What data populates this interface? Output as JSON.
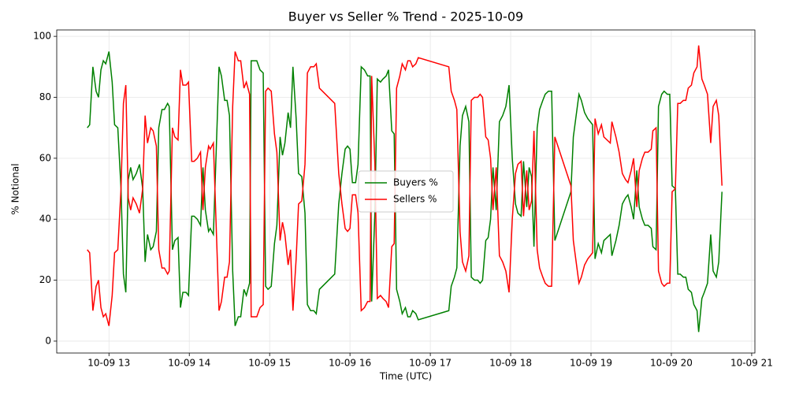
{
  "chart_data": {
    "type": "line",
    "title": "Buyer vs Seller % Trend - 2025-10-09",
    "x_label": "Time (UTC)",
    "y_label": "% Notional",
    "x": [
      12.73,
      12.76,
      12.8,
      12.84,
      12.87,
      12.9,
      12.93,
      12.96,
      13.0,
      13.04,
      13.07,
      13.11,
      13.15,
      13.18,
      13.21,
      13.24,
      13.27,
      13.3,
      13.34,
      13.38,
      13.42,
      13.45,
      13.48,
      13.52,
      13.55,
      13.59,
      13.62,
      13.66,
      13.69,
      13.73,
      13.75,
      13.79,
      13.82,
      13.86,
      13.89,
      13.92,
      13.96,
      13.99,
      14.03,
      14.06,
      14.1,
      14.14,
      14.17,
      14.2,
      14.24,
      14.26,
      14.3,
      14.37,
      14.4,
      14.44,
      14.47,
      14.5,
      14.54,
      14.57,
      14.61,
      14.64,
      14.68,
      14.71,
      14.75,
      14.77,
      14.81,
      14.84,
      14.88,
      14.92,
      14.95,
      14.98,
      15.02,
      15.06,
      15.09,
      15.13,
      15.16,
      15.19,
      15.23,
      15.26,
      15.29,
      15.33,
      15.36,
      15.4,
      15.44,
      15.47,
      15.51,
      15.55,
      15.58,
      15.62,
      15.81,
      15.86,
      15.9,
      15.94,
      15.97,
      16.0,
      16.03,
      16.07,
      16.1,
      16.14,
      16.18,
      16.22,
      16.25,
      16.27,
      16.31,
      16.34,
      16.38,
      16.41,
      16.45,
      16.48,
      16.52,
      16.55,
      16.58,
      16.62,
      16.65,
      16.69,
      16.72,
      16.75,
      16.78,
      16.82,
      16.85,
      17.23,
      17.26,
      17.3,
      17.33,
      17.37,
      17.4,
      17.44,
      17.48,
      17.51,
      17.55,
      17.59,
      17.62,
      17.65,
      17.69,
      17.72,
      17.75,
      17.78,
      17.82,
      17.86,
      17.9,
      17.94,
      17.98,
      18.02,
      18.06,
      18.09,
      18.13,
      18.16,
      18.2,
      18.23,
      18.26,
      18.29,
      18.33,
      18.36,
      18.4,
      18.43,
      18.47,
      18.51,
      18.55,
      18.75,
      18.78,
      18.81,
      18.85,
      18.88,
      18.92,
      18.96,
      19.02,
      19.05,
      19.09,
      19.13,
      19.16,
      19.2,
      19.24,
      19.26,
      19.31,
      19.35,
      19.39,
      19.43,
      19.46,
      19.5,
      19.53,
      19.57,
      19.6,
      19.64,
      19.67,
      19.71,
      19.75,
      19.77,
      19.81,
      19.84,
      19.88,
      19.91,
      19.95,
      19.98,
      20.01,
      20.05,
      20.08,
      20.11,
      20.15,
      20.18,
      20.21,
      20.25,
      20.28,
      20.32,
      20.34,
      20.38,
      20.41,
      20.45,
      20.49,
      20.52,
      20.56,
      20.59,
      20.63
    ],
    "series": [
      {
        "name": "Buyers %",
        "color": "#008000",
        "values": [
          70,
          71,
          90,
          82,
          80,
          89,
          92,
          91,
          95,
          85,
          71,
          70,
          50,
          22,
          16,
          53,
          57,
          53,
          55,
          58,
          50,
          26,
          35,
          30,
          31,
          36,
          70,
          76,
          76,
          78,
          77,
          30,
          33,
          34,
          11,
          16,
          16,
          15,
          41,
          41,
          40,
          38,
          57,
          43,
          36,
          37,
          35,
          90,
          87,
          79,
          79,
          74,
          23,
          5,
          8,
          8,
          17,
          15,
          19,
          92,
          92,
          92,
          89,
          88,
          18,
          17,
          18,
          32,
          38,
          67,
          61,
          65,
          75,
          70,
          90,
          73,
          55,
          54,
          42,
          12,
          10,
          10,
          9,
          17,
          22,
          45,
          55,
          63,
          64,
          63,
          52,
          52,
          58,
          90,
          89,
          87,
          87,
          13,
          42,
          86,
          85,
          86,
          87,
          89,
          69,
          68,
          17,
          13,
          9,
          11,
          8,
          8,
          10,
          9,
          7,
          10,
          18,
          21,
          24,
          64,
          74,
          77,
          72,
          21,
          20,
          20,
          19,
          20,
          33,
          34,
          40,
          57,
          43,
          72,
          74,
          77,
          84,
          60,
          45,
          42,
          41,
          59,
          44,
          57,
          54,
          31,
          70,
          76,
          79,
          81,
          82,
          82,
          33,
          49,
          67,
          73,
          81,
          79,
          75,
          73,
          71,
          27,
          32,
          29,
          33,
          34,
          35,
          28,
          33,
          38,
          45,
          47,
          48,
          44,
          40,
          56,
          44,
          40,
          38,
          38,
          37,
          31,
          30,
          77,
          81,
          82,
          81,
          81,
          51,
          50,
          22,
          22,
          21,
          21,
          17,
          16,
          12,
          10,
          3,
          14,
          16,
          19,
          35,
          23,
          21,
          26,
          49
        ]
      },
      {
        "name": "Sellers %",
        "color": "#ff0000",
        "values": [
          30,
          29,
          10,
          18,
          20,
          11,
          8,
          9,
          5,
          15,
          29,
          30,
          50,
          78,
          84,
          47,
          43,
          47,
          45,
          42,
          50,
          74,
          65,
          70,
          69,
          64,
          30,
          24,
          24,
          22,
          23,
          70,
          67,
          66,
          89,
          84,
          84,
          85,
          59,
          59,
          60,
          62,
          43,
          57,
          64,
          63,
          65,
          10,
          13,
          21,
          21,
          26,
          77,
          95,
          92,
          92,
          83,
          85,
          81,
          8,
          8,
          8,
          11,
          12,
          82,
          83,
          82,
          68,
          62,
          33,
          39,
          35,
          25,
          30,
          10,
          27,
          45,
          46,
          58,
          88,
          90,
          90,
          91,
          83,
          78,
          55,
          45,
          37,
          36,
          37,
          48,
          48,
          42,
          10,
          11,
          13,
          13,
          87,
          58,
          14,
          15,
          14,
          13,
          11,
          31,
          32,
          83,
          87,
          91,
          89,
          92,
          92,
          90,
          91,
          93,
          90,
          82,
          79,
          76,
          36,
          26,
          23,
          28,
          79,
          80,
          80,
          81,
          80,
          67,
          66,
          60,
          43,
          57,
          28,
          26,
          23,
          16,
          40,
          55,
          58,
          59,
          41,
          56,
          43,
          46,
          69,
          30,
          24,
          21,
          19,
          18,
          18,
          67,
          51,
          33,
          27,
          19,
          21,
          25,
          27,
          29,
          73,
          68,
          71,
          67,
          66,
          65,
          72,
          67,
          62,
          55,
          53,
          52,
          56,
          60,
          44,
          56,
          60,
          62,
          62,
          63,
          69,
          70,
          23,
          19,
          18,
          19,
          19,
          49,
          50,
          78,
          78,
          79,
          79,
          83,
          84,
          88,
          90,
          97,
          86,
          84,
          81,
          65,
          77,
          79,
          74,
          51
        ]
      }
    ],
    "xlim": [
      12.35,
      21.04
    ],
    "xticks": [
      {
        "value": 13,
        "label": "10-09 13"
      },
      {
        "value": 14,
        "label": "10-09 14"
      },
      {
        "value": 15,
        "label": "10-09 15"
      },
      {
        "value": 16,
        "label": "10-09 16"
      },
      {
        "value": 17,
        "label": "10-09 17"
      },
      {
        "value": 18,
        "label": "10-09 18"
      },
      {
        "value": 19,
        "label": "10-09 19"
      },
      {
        "value": 20,
        "label": "10-09 20"
      },
      {
        "value": 21,
        "label": "10-09 21"
      }
    ],
    "ylim": [
      -3.9,
      102.1
    ],
    "yticks": [
      0,
      20,
      40,
      60,
      80,
      100
    ],
    "grid": true,
    "legend": "center"
  }
}
